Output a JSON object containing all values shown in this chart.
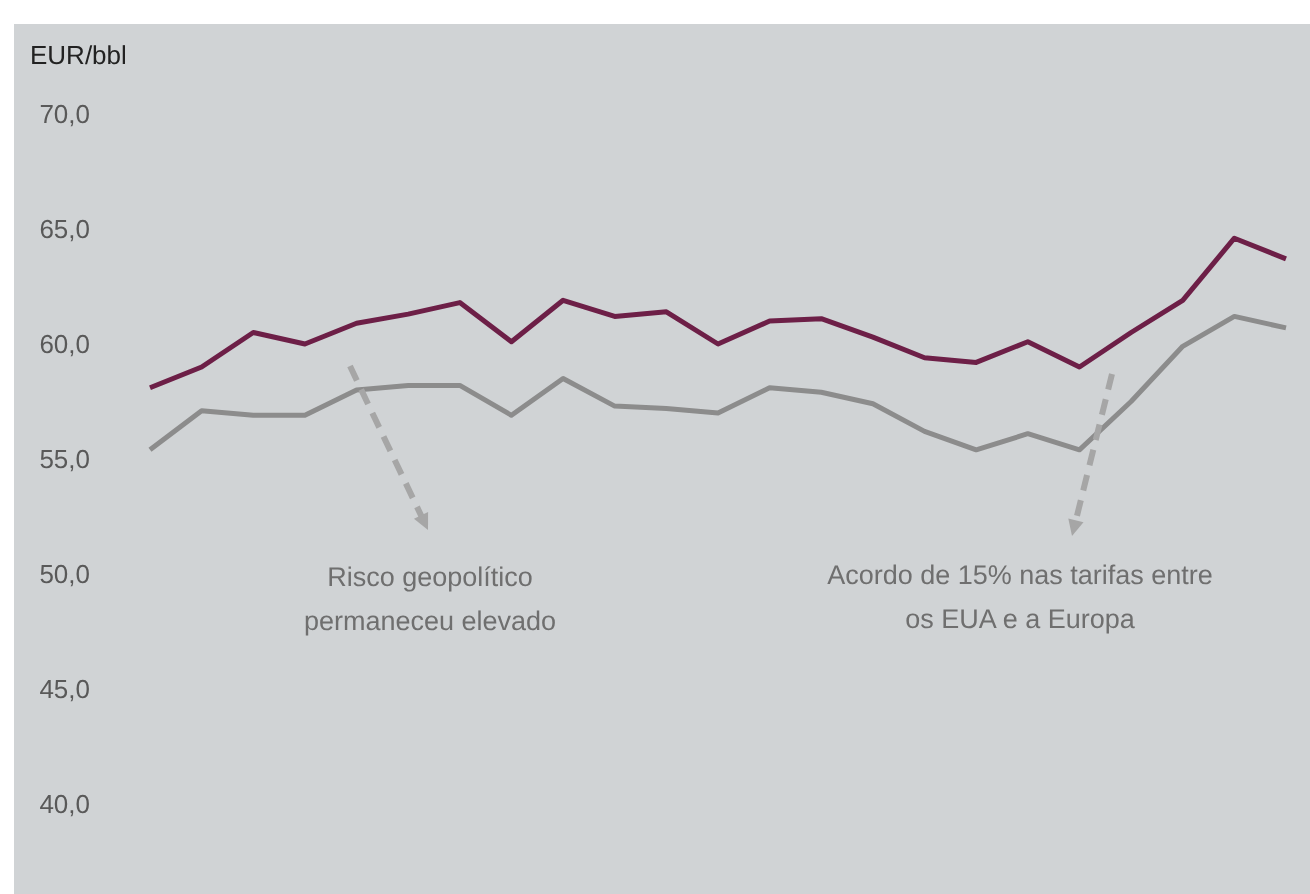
{
  "chart_data": {
    "type": "line",
    "ylabel": "EUR/bbl",
    "categories": [
      null,
      null,
      null,
      null,
      null,
      null,
      null,
      null,
      null,
      null,
      null,
      null,
      null,
      null,
      null,
      null,
      null,
      null,
      null,
      null,
      null,
      null,
      null
    ],
    "series": [
      {
        "color": "#6d1f47",
        "values": [
          58.1,
          59.0,
          60.5,
          60.0,
          60.9,
          61.3,
          61.8,
          60.1,
          61.9,
          61.2,
          61.4,
          60.0,
          61.0,
          61.1,
          60.3,
          59.4,
          59.2,
          60.1,
          59.0,
          60.5,
          61.9,
          64.6,
          63.7
        ]
      },
      {
        "color": "#8c8c8c",
        "values": [
          55.4,
          57.1,
          56.9,
          56.9,
          58.0,
          58.2,
          58.2,
          56.9,
          58.5,
          57.3,
          57.2,
          57.0,
          58.1,
          57.9,
          57.4,
          56.2,
          55.4,
          56.1,
          55.4,
          57.5,
          59.9,
          61.2,
          60.7
        ]
      }
    ],
    "ylim": [
      40,
      70
    ],
    "yticks": [
      {
        "value": 40,
        "label": "40,0"
      },
      {
        "value": 45,
        "label": "45,0"
      },
      {
        "value": 50,
        "label": "50,0"
      },
      {
        "value": 55,
        "label": "55,0"
      },
      {
        "value": 60,
        "label": "60,0"
      },
      {
        "value": 65,
        "label": "65,0"
      },
      {
        "value": 70,
        "label": "70,0"
      }
    ],
    "annotations": [
      "Risco geopolítico permaneceu elevado",
      "Acordo de 15% nas tarifas entre os EUA e a Europa"
    ],
    "tick_labels": "y",
    "grid": false,
    "legend": false,
    "marker": "none",
    "line_style": "solid"
  }
}
